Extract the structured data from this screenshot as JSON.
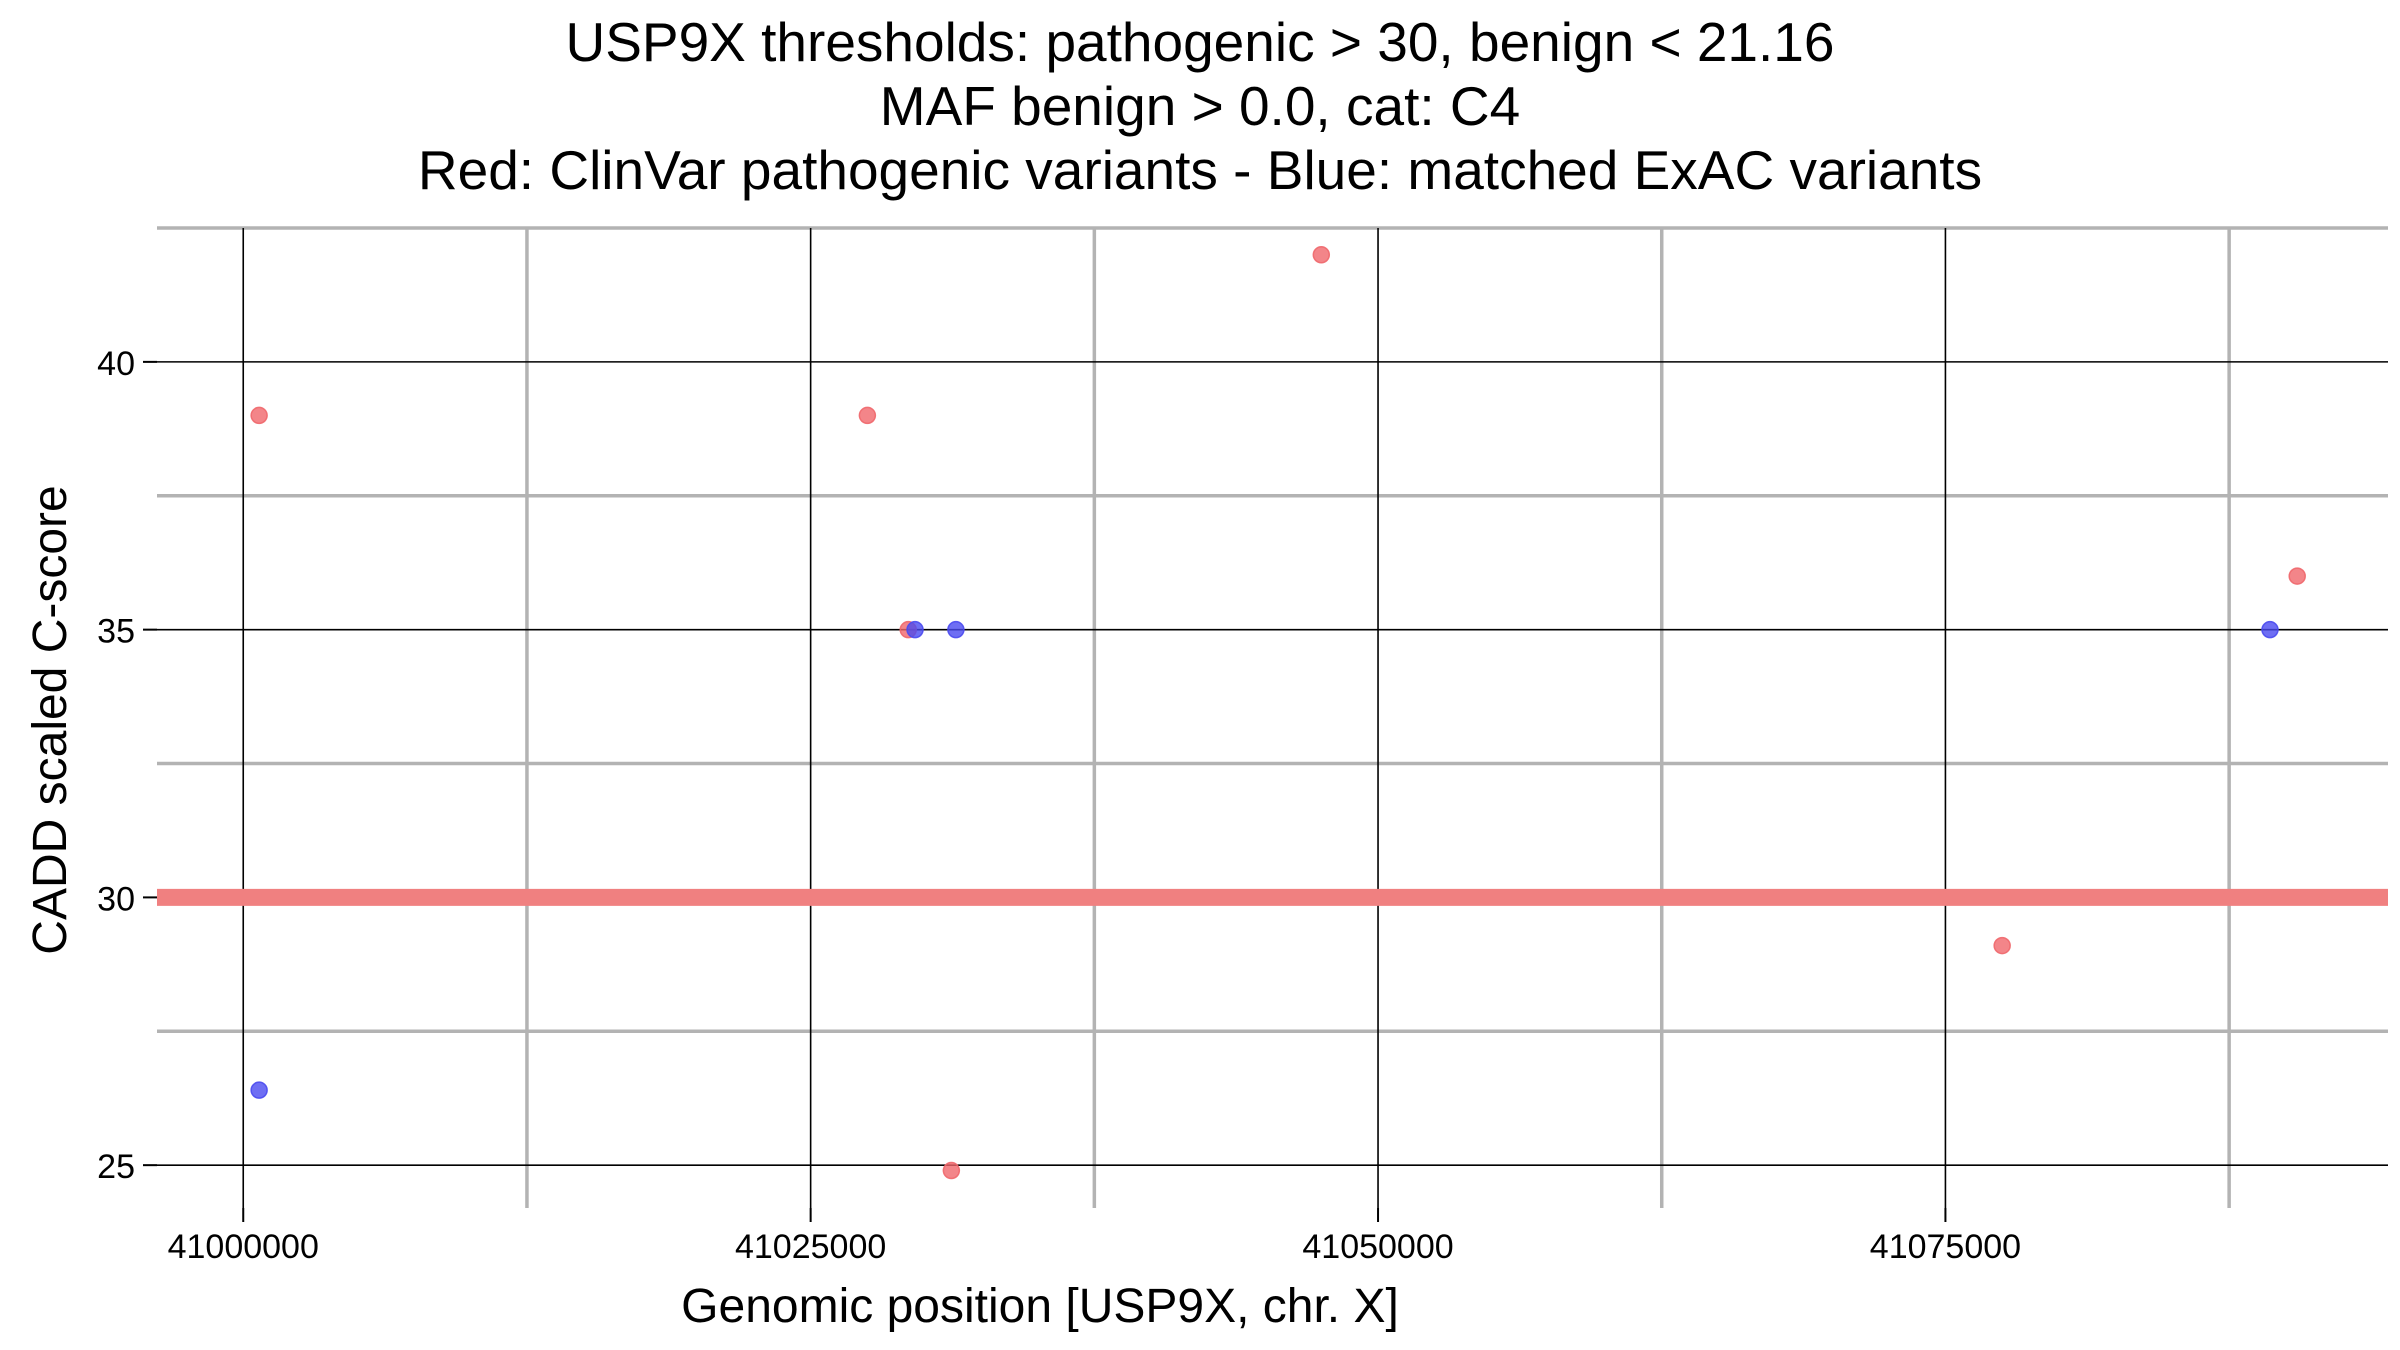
{
  "chart_data": {
    "type": "scatter",
    "title_lines": [
      "USP9X thresholds: pathogenic > 30, benign < 21.16",
      "MAF benign > 0.0, cat: C4",
      "Red: ClinVar pathogenic variants - Blue: matched ExAC variants"
    ],
    "xlabel": "Genomic position [USP9X, chr. X]",
    "ylabel": "CADD scaled C-score",
    "xlim": [
      40996200,
      41094500
    ],
    "ylim": [
      24.2,
      42.5
    ],
    "x_ticks": [
      41000000,
      41025000,
      41050000,
      41075000
    ],
    "x_tick_labels": [
      "41000000",
      "41025000",
      "41050000",
      "41075000"
    ],
    "x_minor_grid": [
      41012500,
      41037500,
      41062500,
      41087500
    ],
    "y_ticks": [
      25,
      30,
      35,
      40
    ],
    "y_tick_labels": [
      "25",
      "30",
      "35",
      "40"
    ],
    "y_minor_grid": [
      27.5,
      32.5,
      37.5,
      42.5
    ],
    "grid": true,
    "threshold_line": {
      "y": 30,
      "color": "#f08080"
    },
    "colors": {
      "pathogenic": "#f0676b",
      "exac": "#4a4af0",
      "exac_solid": "#0000ff"
    },
    "series": [
      {
        "color": "#f0676b",
        "points": [
          {
            "x": 41000700,
            "y": 39.0
          },
          {
            "x": 41027500,
            "y": 39.0
          },
          {
            "x": 41029300,
            "y": 35.0
          },
          {
            "x": 41031200,
            "y": 24.9
          },
          {
            "x": 41047500,
            "y": 42.0
          },
          {
            "x": 41077500,
            "y": 29.1
          },
          {
            "x": 41090500,
            "y": 36.0
          }
        ]
      },
      {
        "color": "#4a4af0",
        "points": [
          {
            "x": 41000700,
            "y": 26.4
          },
          {
            "x": 41029600,
            "y": 35.0
          },
          {
            "x": 41031400,
            "y": 35.0
          },
          {
            "x": 41089300,
            "y": 35.0
          }
        ]
      }
    ]
  }
}
